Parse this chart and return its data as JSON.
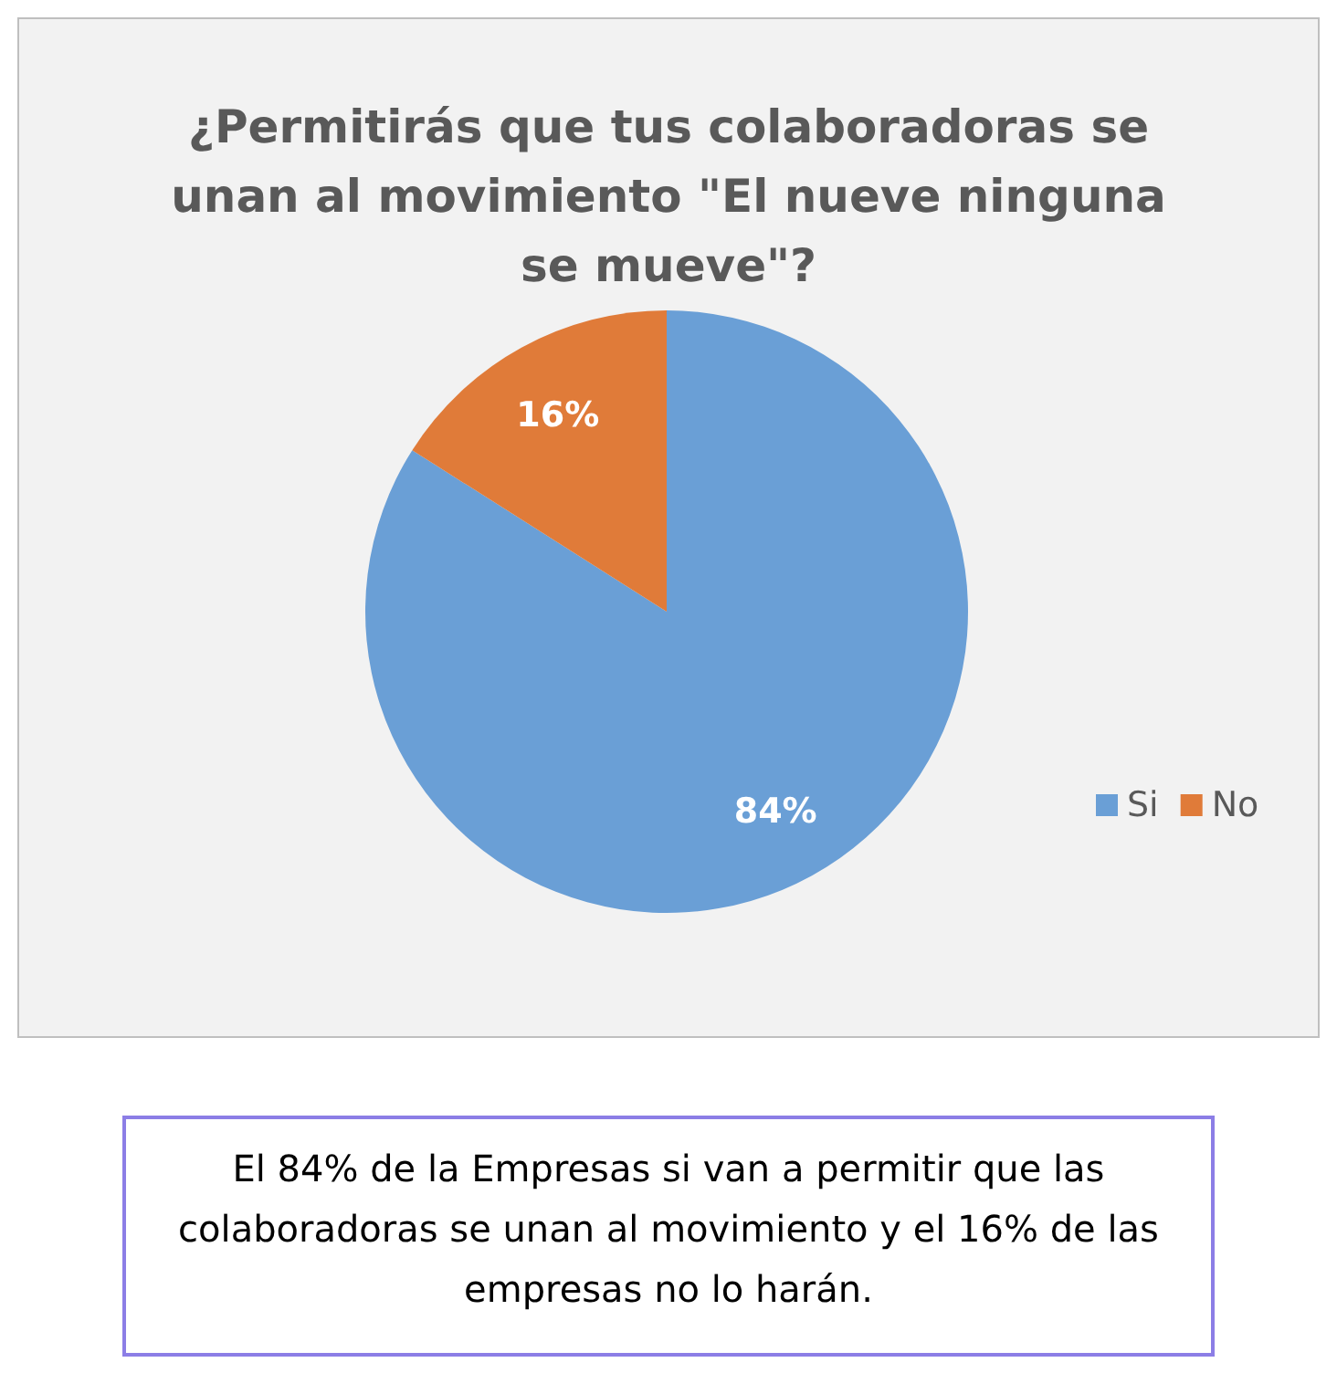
{
  "chart_data": {
    "type": "pie",
    "title": "¿Permitirás que tus colaboradoras se unan al movimiento \"El nueve ninguna se mueve\"?",
    "categories": [
      "Si",
      "No"
    ],
    "values": [
      84,
      16
    ],
    "colors": [
      "#6a9fd6",
      "#e07b39"
    ],
    "value_labels": [
      "84%",
      "16%"
    ],
    "legend": "right",
    "annotations": [
      "El 84% de la Empresas si van a permitir que las colaboradoras se unan al movimiento y el 16% de las empresas no lo harán."
    ]
  }
}
